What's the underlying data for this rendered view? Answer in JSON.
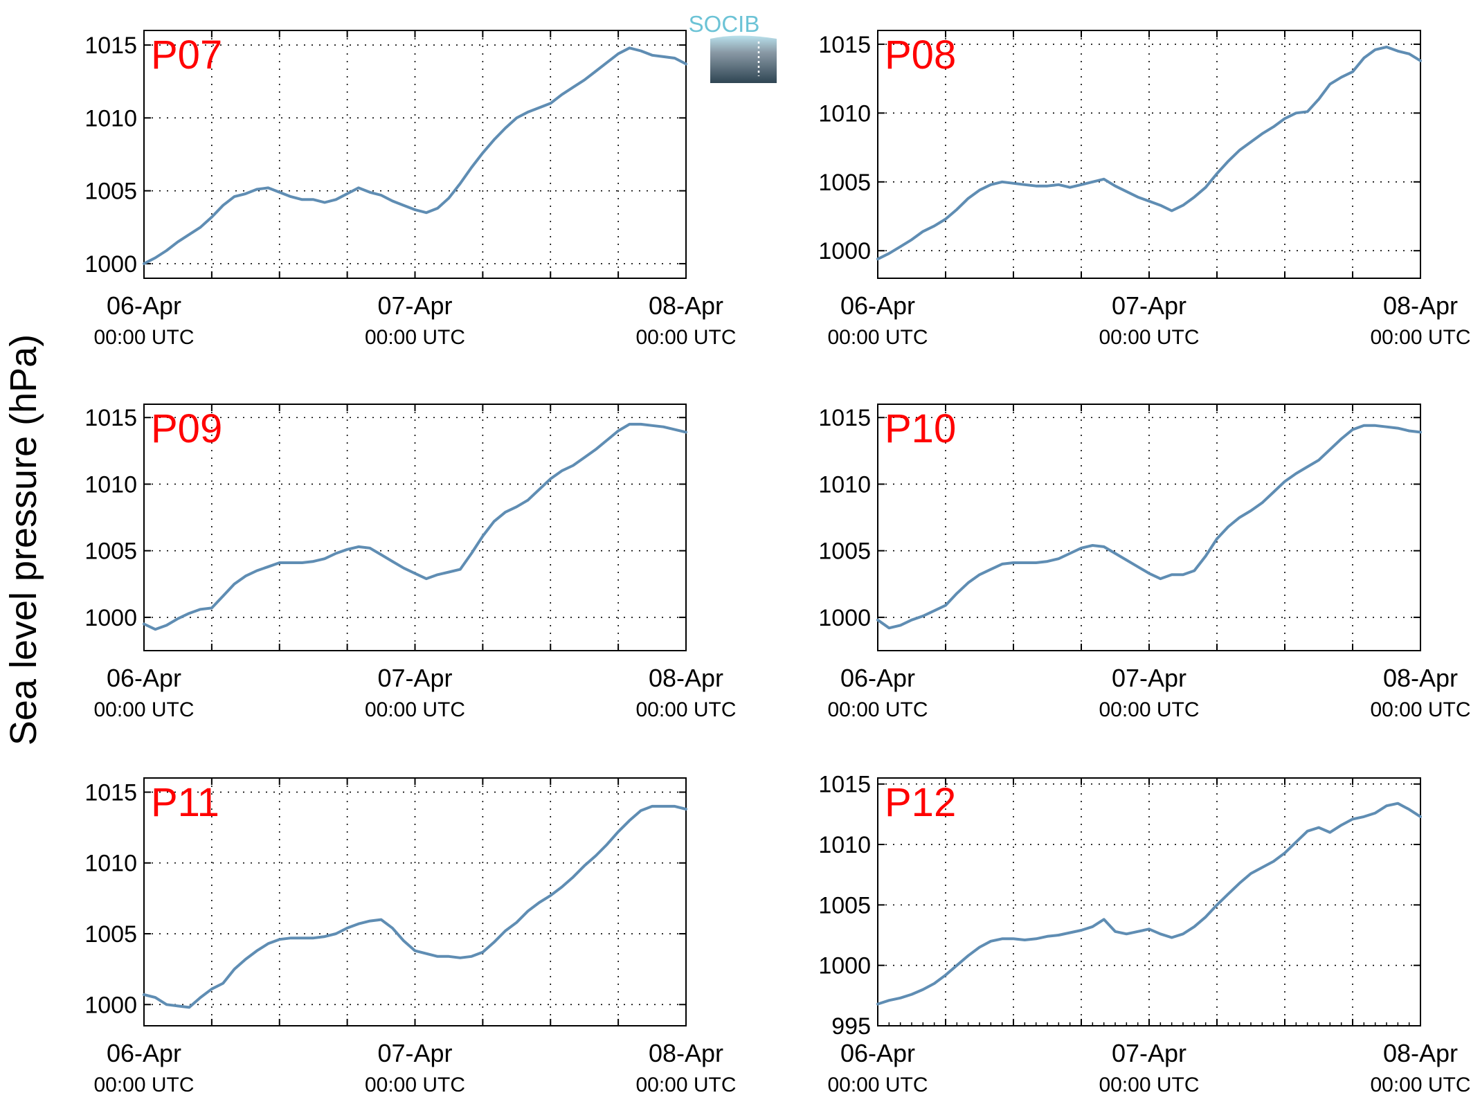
{
  "figure": {
    "ylabel": "Sea level pressure (hPa)",
    "logo_text": "SOCIB",
    "line_color": "#5f8db3",
    "label_color": "#ff0000"
  },
  "chart_data": [
    {
      "type": "line",
      "panel": "P07",
      "ylim": [
        999,
        1016
      ],
      "yticks": [
        1000,
        1005,
        1010,
        1015
      ],
      "xlim": [
        0,
        48
      ],
      "grid": true,
      "xlabel": "",
      "ylabel": "",
      "x_major_labels": [
        {
          "hour": 0,
          "date": "06-Apr",
          "time": "00:00 UTC"
        },
        {
          "hour": 24,
          "date": "07-Apr",
          "time": "00:00 UTC"
        },
        {
          "hour": 48,
          "date": "08-Apr",
          "time": "00:00 UTC"
        }
      ],
      "series": [
        {
          "x": [
            0,
            1,
            2,
            3,
            4,
            5,
            6,
            7,
            8,
            9,
            10,
            11,
            12,
            13,
            14,
            15,
            16,
            17,
            18,
            19,
            20,
            21,
            22,
            23,
            24,
            25,
            26,
            27,
            28,
            29,
            30,
            31,
            32,
            33,
            34,
            35,
            36,
            37,
            38,
            39,
            40,
            41,
            42,
            43,
            44,
            45,
            46,
            47,
            48
          ],
          "values": [
            1000.0,
            1000.4,
            1000.9,
            1001.5,
            1002.0,
            1002.5,
            1003.2,
            1004.0,
            1004.6,
            1004.8,
            1005.1,
            1005.2,
            1004.9,
            1004.6,
            1004.4,
            1004.4,
            1004.2,
            1004.4,
            1004.8,
            1005.2,
            1004.9,
            1004.7,
            1004.3,
            1004.0,
            1003.7,
            1003.5,
            1003.8,
            1004.5,
            1005.5,
            1006.6,
            1007.6,
            1008.5,
            1009.3,
            1010.0,
            1010.4,
            1010.7,
            1011.0,
            1011.6,
            1012.1,
            1012.6,
            1013.2,
            1013.8,
            1014.4,
            1014.8,
            1014.6,
            1014.3,
            1014.2,
            1014.1,
            1013.7
          ]
        }
      ]
    },
    {
      "type": "line",
      "panel": "P08",
      "ylim": [
        998,
        1016
      ],
      "yticks": [
        1000,
        1005,
        1010,
        1015
      ],
      "xlim": [
        0,
        48
      ],
      "grid": true,
      "xlabel": "",
      "ylabel": "",
      "x_major_labels": [
        {
          "hour": 0,
          "date": "06-Apr",
          "time": "00:00 UTC"
        },
        {
          "hour": 24,
          "date": "07-Apr",
          "time": "00:00 UTC"
        },
        {
          "hour": 48,
          "date": "08-Apr",
          "time": "00:00 UTC"
        }
      ],
      "series": [
        {
          "x": [
            0,
            1,
            2,
            3,
            4,
            5,
            6,
            7,
            8,
            9,
            10,
            11,
            12,
            13,
            14,
            15,
            16,
            17,
            18,
            19,
            20,
            21,
            22,
            23,
            24,
            25,
            26,
            27,
            28,
            29,
            30,
            31,
            32,
            33,
            34,
            35,
            36,
            37,
            38,
            39,
            40,
            41,
            42,
            43,
            44,
            45,
            46,
            47,
            48
          ],
          "values": [
            999.4,
            999.8,
            1000.3,
            1000.8,
            1001.4,
            1001.8,
            1002.3,
            1003.0,
            1003.8,
            1004.4,
            1004.8,
            1005.0,
            1004.9,
            1004.8,
            1004.7,
            1004.7,
            1004.8,
            1004.6,
            1004.8,
            1005.0,
            1005.2,
            1004.7,
            1004.3,
            1003.9,
            1003.6,
            1003.3,
            1002.9,
            1003.3,
            1003.9,
            1004.6,
            1005.6,
            1006.5,
            1007.3,
            1007.9,
            1008.5,
            1009.0,
            1009.6,
            1010.0,
            1010.1,
            1011.0,
            1012.1,
            1012.6,
            1013.0,
            1014.0,
            1014.6,
            1014.8,
            1014.5,
            1014.3,
            1013.8
          ]
        }
      ]
    },
    {
      "type": "line",
      "panel": "P09",
      "ylim": [
        997.5,
        1016
      ],
      "yticks": [
        1000,
        1005,
        1010,
        1015
      ],
      "xlim": [
        0,
        48
      ],
      "grid": true,
      "xlabel": "",
      "ylabel": "",
      "x_major_labels": [
        {
          "hour": 0,
          "date": "06-Apr",
          "time": "00:00 UTC"
        },
        {
          "hour": 24,
          "date": "07-Apr",
          "time": "00:00 UTC"
        },
        {
          "hour": 48,
          "date": "08-Apr",
          "time": "00:00 UTC"
        }
      ],
      "series": [
        {
          "x": [
            0,
            1,
            2,
            3,
            4,
            5,
            6,
            7,
            8,
            9,
            10,
            11,
            12,
            13,
            14,
            15,
            16,
            17,
            18,
            19,
            20,
            21,
            22,
            23,
            24,
            25,
            26,
            27,
            28,
            29,
            30,
            31,
            32,
            33,
            34,
            35,
            36,
            37,
            38,
            39,
            40,
            41,
            42,
            43,
            44,
            45,
            46,
            47,
            48
          ],
          "values": [
            999.5,
            999.1,
            999.4,
            999.9,
            1000.3,
            1000.6,
            1000.7,
            1001.6,
            1002.5,
            1003.1,
            1003.5,
            1003.8,
            1004.1,
            1004.1,
            1004.1,
            1004.2,
            1004.4,
            1004.8,
            1005.1,
            1005.3,
            1005.2,
            1004.7,
            1004.2,
            1003.7,
            1003.3,
            1002.9,
            1003.2,
            1003.4,
            1003.6,
            1004.8,
            1006.1,
            1007.2,
            1007.9,
            1008.3,
            1008.8,
            1009.6,
            1010.4,
            1011.0,
            1011.4,
            1012.0,
            1012.6,
            1013.3,
            1014.0,
            1014.5,
            1014.5,
            1014.4,
            1014.3,
            1014.1,
            1013.9
          ]
        }
      ]
    },
    {
      "type": "line",
      "panel": "P10",
      "ylim": [
        997.5,
        1016
      ],
      "yticks": [
        1000,
        1005,
        1010,
        1015
      ],
      "xlim": [
        0,
        48
      ],
      "grid": true,
      "xlabel": "",
      "ylabel": "",
      "x_major_labels": [
        {
          "hour": 0,
          "date": "06-Apr",
          "time": "00:00 UTC"
        },
        {
          "hour": 24,
          "date": "07-Apr",
          "time": "00:00 UTC"
        },
        {
          "hour": 48,
          "date": "08-Apr",
          "time": "00:00 UTC"
        }
      ],
      "series": [
        {
          "x": [
            0,
            1,
            2,
            3,
            4,
            5,
            6,
            7,
            8,
            9,
            10,
            11,
            12,
            13,
            14,
            15,
            16,
            17,
            18,
            19,
            20,
            21,
            22,
            23,
            24,
            25,
            26,
            27,
            28,
            29,
            30,
            31,
            32,
            33,
            34,
            35,
            36,
            37,
            38,
            39,
            40,
            41,
            42,
            43,
            44,
            45,
            46,
            47,
            48
          ],
          "values": [
            999.8,
            999.2,
            999.4,
            999.8,
            1000.1,
            1000.5,
            1000.9,
            1001.8,
            1002.6,
            1003.2,
            1003.6,
            1004.0,
            1004.1,
            1004.1,
            1004.1,
            1004.2,
            1004.4,
            1004.8,
            1005.2,
            1005.4,
            1005.3,
            1004.8,
            1004.3,
            1003.8,
            1003.3,
            1002.9,
            1003.2,
            1003.2,
            1003.5,
            1004.6,
            1005.9,
            1006.8,
            1007.5,
            1008.0,
            1008.6,
            1009.4,
            1010.2,
            1010.8,
            1011.3,
            1011.8,
            1012.6,
            1013.4,
            1014.1,
            1014.4,
            1014.4,
            1014.3,
            1014.2,
            1014.0,
            1013.9
          ]
        }
      ]
    },
    {
      "type": "line",
      "panel": "P11",
      "ylim": [
        998.5,
        1016
      ],
      "yticks": [
        1000,
        1005,
        1010,
        1015
      ],
      "xlim": [
        0,
        48
      ],
      "grid": true,
      "xlabel": "",
      "ylabel": "",
      "x_major_labels": [
        {
          "hour": 0,
          "date": "06-Apr",
          "time": "00:00 UTC"
        },
        {
          "hour": 24,
          "date": "07-Apr",
          "time": "00:00 UTC"
        },
        {
          "hour": 48,
          "date": "08-Apr",
          "time": "00:00 UTC"
        }
      ],
      "series": [
        {
          "x": [
            0,
            1,
            2,
            3,
            4,
            5,
            6,
            7,
            8,
            9,
            10,
            11,
            12,
            13,
            14,
            15,
            16,
            17,
            18,
            19,
            20,
            21,
            22,
            23,
            24,
            25,
            26,
            27,
            28,
            29,
            30,
            31,
            32,
            33,
            34,
            35,
            36,
            37,
            38,
            39,
            40,
            41,
            42,
            43,
            44,
            45,
            46,
            47,
            48
          ],
          "values": [
            1000.7,
            1000.5,
            1000.0,
            999.9,
            999.8,
            1000.5,
            1001.1,
            1001.5,
            1002.5,
            1003.2,
            1003.8,
            1004.3,
            1004.6,
            1004.7,
            1004.7,
            1004.7,
            1004.8,
            1005.0,
            1005.4,
            1005.7,
            1005.9,
            1006.0,
            1005.4,
            1004.5,
            1003.8,
            1003.6,
            1003.4,
            1003.4,
            1003.3,
            1003.4,
            1003.7,
            1004.4,
            1005.2,
            1005.8,
            1006.6,
            1007.2,
            1007.7,
            1008.3,
            1009.0,
            1009.8,
            1010.5,
            1011.3,
            1012.2,
            1013.0,
            1013.7,
            1014.0,
            1014.0,
            1014.0,
            1013.8
          ]
        }
      ]
    },
    {
      "type": "line",
      "panel": "P12",
      "ylim": [
        995,
        1015.5
      ],
      "yticks": [
        995,
        1000,
        1005,
        1010,
        1015
      ],
      "xlim": [
        0,
        48
      ],
      "grid": true,
      "xlabel": "",
      "ylabel": "",
      "x_major_labels": [
        {
          "hour": 0,
          "date": "06-Apr",
          "time": "00:00 UTC"
        },
        {
          "hour": 24,
          "date": "07-Apr",
          "time": "00:00 UTC"
        },
        {
          "hour": 48,
          "date": "08-Apr",
          "time": "00:00 UTC"
        }
      ],
      "series": [
        {
          "x": [
            0,
            1,
            2,
            3,
            4,
            5,
            6,
            7,
            8,
            9,
            10,
            11,
            12,
            13,
            14,
            15,
            16,
            17,
            18,
            19,
            20,
            21,
            22,
            23,
            24,
            25,
            26,
            27,
            28,
            29,
            30,
            31,
            32,
            33,
            34,
            35,
            36,
            37,
            38,
            39,
            40,
            41,
            42,
            43,
            44,
            45,
            46,
            47,
            48
          ],
          "values": [
            996.8,
            997.1,
            997.3,
            997.6,
            998.0,
            998.5,
            999.2,
            1000.0,
            1000.8,
            1001.5,
            1002.0,
            1002.2,
            1002.2,
            1002.1,
            1002.2,
            1002.4,
            1002.5,
            1002.7,
            1002.9,
            1003.2,
            1003.8,
            1002.8,
            1002.6,
            1002.8,
            1003.0,
            1002.6,
            1002.3,
            1002.6,
            1003.2,
            1004.0,
            1005.0,
            1005.9,
            1006.8,
            1007.6,
            1008.1,
            1008.6,
            1009.3,
            1010.2,
            1011.1,
            1011.4,
            1011.0,
            1011.6,
            1012.1,
            1012.3,
            1012.6,
            1013.2,
            1013.4,
            1012.9,
            1012.3
          ]
        }
      ]
    }
  ]
}
